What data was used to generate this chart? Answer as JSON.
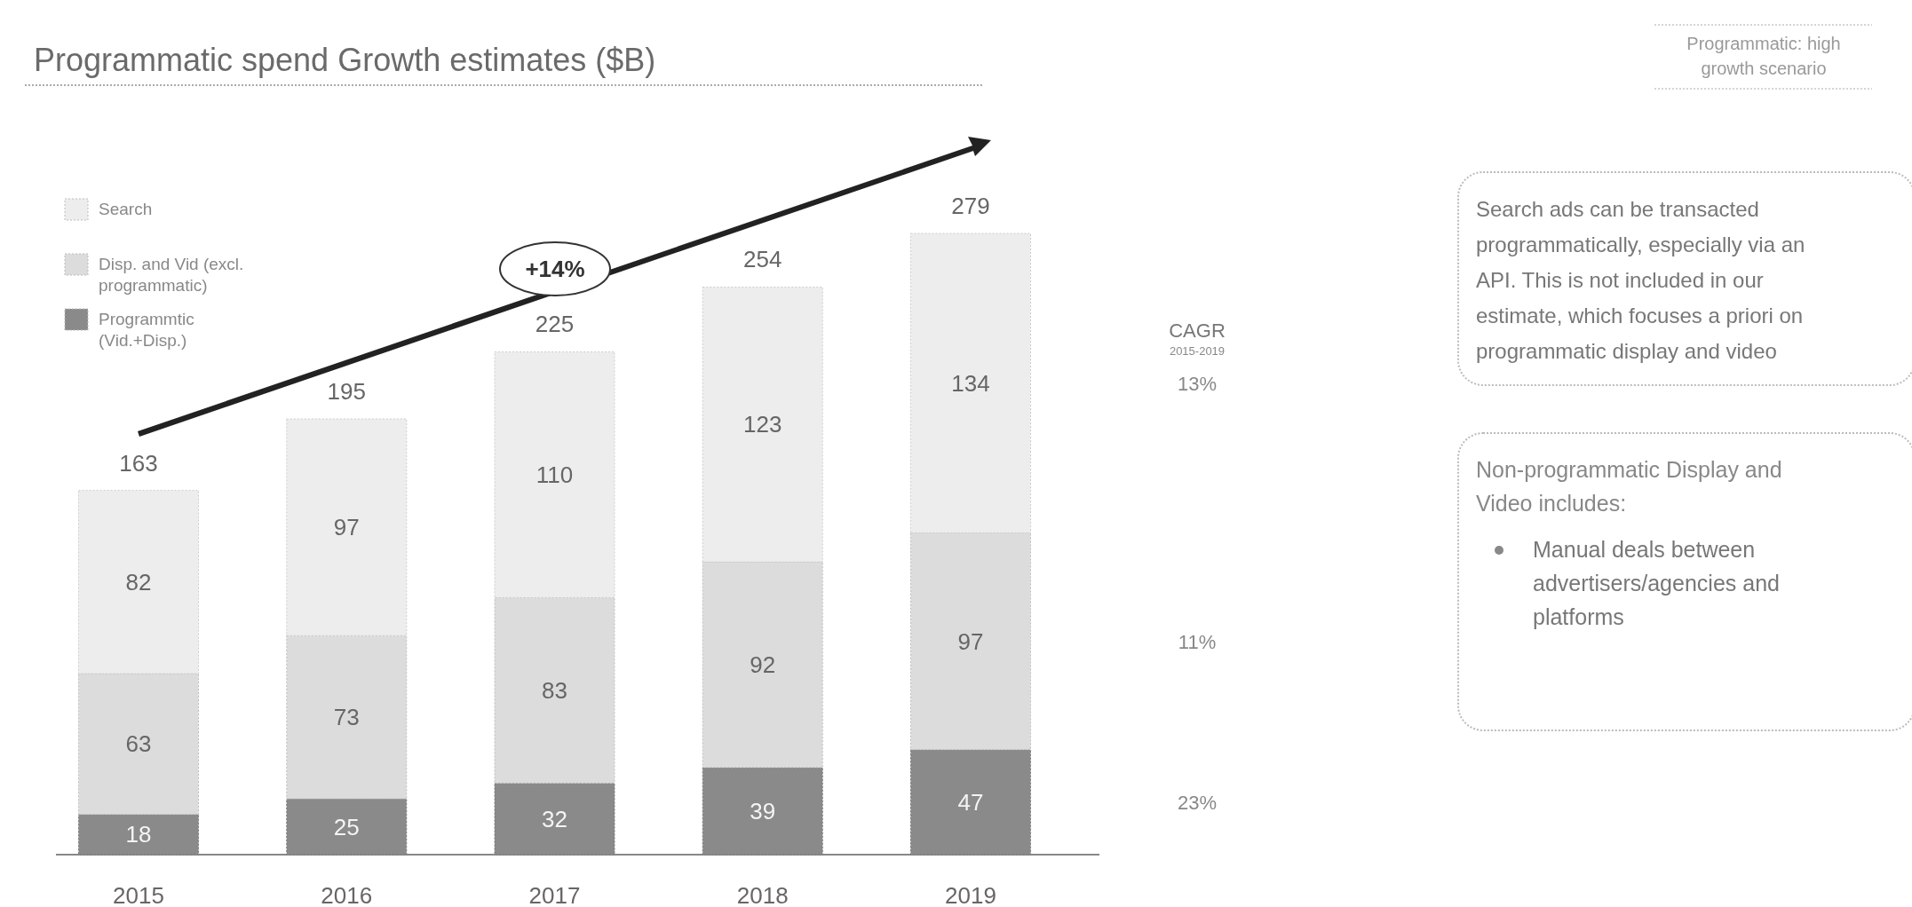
{
  "chart_data": {
    "type": "bar",
    "stacked": true,
    "title": "Programmatic spend Growth estimates ($B)",
    "categories": [
      "2015",
      "2016",
      "2017",
      "2018",
      "2019"
    ],
    "series": [
      {
        "name": "Programmtic (Vid.+Disp.)",
        "color": "#8a8a8a",
        "values": [
          18,
          25,
          32,
          39,
          47
        ]
      },
      {
        "name": "Disp. and Vid (excl. programmatic)",
        "color": "#dcdcdc",
        "values": [
          63,
          73,
          83,
          92,
          97
        ]
      },
      {
        "name": "Search",
        "color": "#ededed",
        "values": [
          82,
          97,
          110,
          123,
          134
        ]
      }
    ],
    "data_labels": true,
    "totals": [
      "163",
      "195",
      "225",
      "254",
      "279"
    ],
    "legend": "top left",
    "annotations": [
      "Programmatic: high growth scenario",
      "CAGR",
      "2015-2019",
      "23%",
      "11%",
      "13%",
      "+14%",
      "Search ads can be transacted programmatically, especially via an API. This is not included in our estimate, which focuses a priori on programmatic display and video",
      "Non-programmatic Display and Video includes:",
      "Manual deals between advertisers/agencies and platforms"
    ]
  }
}
